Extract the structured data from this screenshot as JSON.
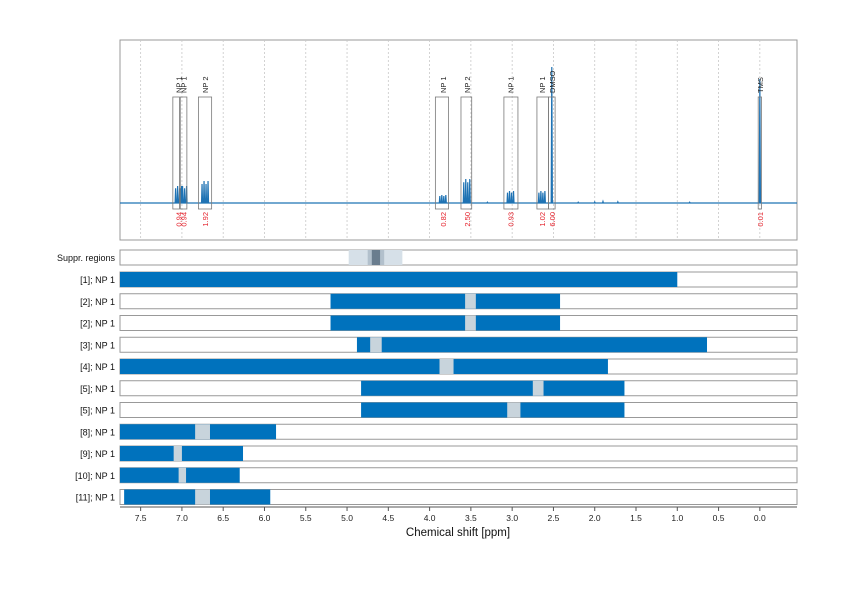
{
  "chart_data": {
    "type": "spectrum",
    "x_axis": {
      "label": "Chemical shift [ppm]",
      "range": [
        7.75,
        -0.45
      ],
      "reversed": true,
      "ticks": [
        "7.5",
        "7.0",
        "6.5",
        "6.0",
        "5.5",
        "5.0",
        "4.5",
        "4.0",
        "3.5",
        "3.0",
        "2.5",
        "2.0",
        "1.5",
        "1.0",
        "0.5",
        "0.0"
      ],
      "tick_values": [
        7.5,
        7.0,
        6.5,
        6.0,
        5.5,
        5.0,
        4.5,
        4.0,
        3.5,
        3.0,
        2.5,
        2.0,
        1.5,
        1.0,
        0.5,
        0.0
      ]
    },
    "colors": {
      "spectrum": "#1f73b4",
      "bar": "#0072bd",
      "gap": "#c8d4dc",
      "integral_text": "#e5212b",
      "suppr_light": "#d6e0e8",
      "suppr_mid": "#b2c0cc",
      "suppr_dark": "#6a7d8e",
      "frame": "#999999"
    },
    "peaks": [
      {
        "label": "NP 1",
        "integral": "0.94",
        "ppm": 7.04,
        "height": 0.085
      },
      {
        "label": "NP 1",
        "integral": "0.94",
        "ppm": 6.98,
        "height": 0.085
      },
      {
        "label": "NP 2",
        "integral": "1.92",
        "ppm": 6.72,
        "height": 0.11
      },
      {
        "label": "NP 1",
        "integral": "0.82",
        "ppm": 3.84,
        "height": 0.04
      },
      {
        "label": "NP 2",
        "integral": "2.50",
        "ppm": 3.55,
        "height": 0.12
      },
      {
        "label": "NP 1",
        "integral": "0.93",
        "ppm": 3.02,
        "height": 0.06
      },
      {
        "label": "NP 1",
        "integral": "1.02",
        "ppm": 2.64,
        "height": 0.06
      },
      {
        "label": "DMSO",
        "integral": "6.00",
        "ppm": 2.52,
        "height": 0.68
      },
      {
        "label": "TMS",
        "integral": "0.01",
        "ppm": 0.0,
        "height": 0.62
      }
    ],
    "annotation_boxes": [
      {
        "ppm_left": 7.11,
        "ppm_right": 7.03
      },
      {
        "ppm_left": 7.02,
        "ppm_right": 6.94
      },
      {
        "ppm_left": 6.8,
        "ppm_right": 6.64
      },
      {
        "ppm_left": 3.93,
        "ppm_right": 3.77
      },
      {
        "ppm_left": 3.62,
        "ppm_right": 3.49
      },
      {
        "ppm_left": 3.1,
        "ppm_right": 2.93
      },
      {
        "ppm_left": 2.7,
        "ppm_right": 2.56
      },
      {
        "ppm_left": 2.56,
        "ppm_right": 2.48
      },
      {
        "ppm_left": 0.02,
        "ppm_right": -0.02
      }
    ],
    "suppression": {
      "label": "Suppr. regions",
      "light": [
        4.98,
        4.33
      ],
      "mid": [
        4.75,
        4.55
      ],
      "dark": [
        4.7,
        4.6
      ]
    },
    "rows": [
      {
        "label": "[1]; NP 1",
        "start": 7.75,
        "end": 1.0,
        "gap": null
      },
      {
        "label": "[2]; NP 1",
        "start": 5.2,
        "end": 2.42,
        "gap": [
          3.57,
          3.44
        ]
      },
      {
        "label": "[2]; NP 1",
        "start": 5.2,
        "end": 2.42,
        "gap": [
          3.57,
          3.44
        ]
      },
      {
        "label": "[3]; NP 1",
        "start": 4.88,
        "end": 0.64,
        "gap": [
          4.72,
          4.58
        ]
      },
      {
        "label": "[4]; NP 1",
        "start": 7.75,
        "end": 1.84,
        "gap": [
          3.88,
          3.71
        ]
      },
      {
        "label": "[5]; NP 1",
        "start": 4.83,
        "end": 1.64,
        "gap": [
          2.75,
          2.62
        ]
      },
      {
        "label": "[5]; NP 1",
        "start": 4.83,
        "end": 1.64,
        "gap": [
          3.06,
          2.9
        ]
      },
      {
        "label": "[8]; NP 1",
        "start": 7.75,
        "end": 5.86,
        "gap": [
          6.84,
          6.66
        ]
      },
      {
        "label": "[9]; NP 1",
        "start": 7.75,
        "end": 6.26,
        "gap": [
          7.1,
          7.0
        ]
      },
      {
        "label": "[10]; NP 1",
        "start": 7.75,
        "end": 6.3,
        "gap": [
          7.04,
          6.95
        ]
      },
      {
        "label": "[11]; NP 1",
        "start": 7.7,
        "end": 5.93,
        "gap": [
          6.84,
          6.66
        ]
      }
    ]
  }
}
